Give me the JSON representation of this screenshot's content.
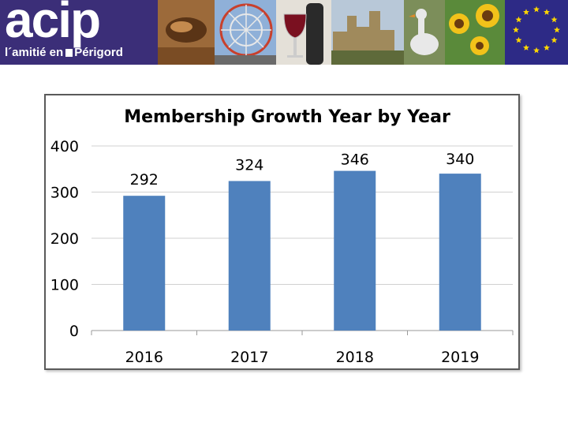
{
  "header": {
    "logo_text": "acip",
    "tagline_left": "l´amitié en",
    "tagline_right": "Périgord"
  },
  "colors": {
    "banner": "#3c2f7a",
    "bar": "#4f81bd",
    "gridline": "#d0d0d0",
    "eu_star": "#ffd700"
  },
  "chart_data": {
    "type": "bar",
    "title": "Membership Growth Year by Year",
    "categories": [
      "2016",
      "2017",
      "2018",
      "2019"
    ],
    "values": [
      292,
      324,
      346,
      340
    ],
    "xlabel": "",
    "ylabel": "",
    "ylim": [
      0,
      400
    ],
    "yticks": [
      0,
      100,
      200,
      300,
      400
    ],
    "grid": true,
    "legend": "none",
    "data_labels": true
  }
}
